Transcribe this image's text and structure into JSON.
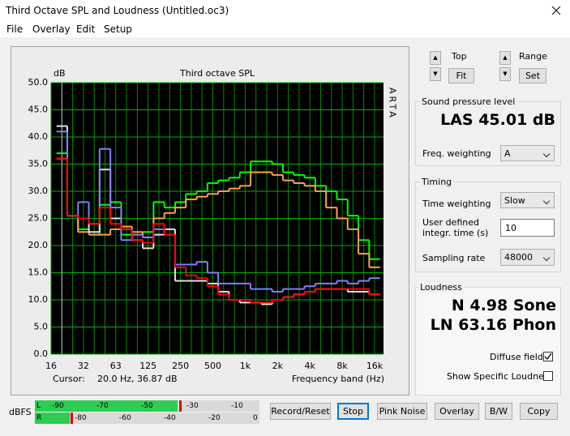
{
  "window": {
    "title": "Third Octave SPL and Loudness (Untitled.oc3)"
  },
  "menu": [
    "File",
    "Overlay",
    "Edit",
    "Setup"
  ],
  "chart_data": {
    "type": "line",
    "step": true,
    "title": "Third octave SPL",
    "y_label": "dB",
    "x_label": "Frequency band (Hz)",
    "side_label": "ARTA",
    "cursor_label": "Cursor:",
    "cursor_value": "20.0 Hz, 36.87 dB",
    "categories": [
      "16",
      null,
      null,
      "32",
      null,
      null,
      "63",
      null,
      null,
      "125",
      null,
      null,
      "250",
      null,
      null,
      "500",
      null,
      null,
      "1k",
      null,
      null,
      "2k",
      null,
      null,
      "4k",
      null,
      null,
      "8k",
      null,
      null,
      "16k"
    ],
    "series": [
      {
        "color": "#00ff00",
        "values": [
          null,
          37,
          25.5,
          23,
          22,
          27.5,
          28,
          22,
          22,
          22.5,
          28,
          27,
          28,
          29.5,
          30,
          31.5,
          32,
          32.5,
          33.5,
          35.5,
          35.5,
          35,
          33.5,
          33,
          32.5,
          31,
          30,
          28.5,
          25.5,
          21,
          17.5
        ]
      },
      {
        "color": "#ff9f50",
        "values": [
          null,
          36,
          25.5,
          22.5,
          22,
          22,
          23,
          23.5,
          22.5,
          21.5,
          25,
          26,
          27,
          28.5,
          29,
          29.5,
          30,
          30.5,
          31,
          33.5,
          33.5,
          33,
          32,
          31.5,
          31,
          30,
          27,
          25,
          23,
          18.5,
          16
        ]
      },
      {
        "color": "#e0e0e0",
        "values": [
          null,
          42,
          25.5,
          25,
          22.5,
          34,
          25,
          23,
          21,
          19.5,
          22,
          23,
          13.5,
          13.5,
          13.5,
          13,
          11.5,
          10,
          9.5,
          9.5,
          9.2,
          10,
          10.5,
          11,
          11.5,
          12,
          12,
          12,
          11.5,
          11.5,
          11
        ]
      },
      {
        "color": "#8080ff",
        "values": [
          null,
          41,
          25.5,
          28,
          24,
          37.8,
          27,
          21,
          22,
          21.5,
          23,
          22,
          16.5,
          16.5,
          17,
          15,
          13,
          13,
          13,
          12,
          12,
          11.5,
          12,
          12,
          12.5,
          13,
          13,
          13.5,
          13,
          13.5,
          14
        ]
      },
      {
        "color": "#ff0000",
        "values": [
          null,
          36,
          25.5,
          25,
          24,
          27,
          24,
          23,
          21,
          20.5,
          24,
          22,
          16,
          14.5,
          14,
          12.5,
          11,
          10,
          10,
          9.5,
          9.5,
          10,
          10.5,
          11,
          11.5,
          12,
          12,
          12,
          12,
          12,
          11
        ]
      }
    ],
    "ylim": [
      0,
      50
    ],
    "yticks": [
      {
        "value": 0,
        "label": "0.0"
      },
      {
        "value": 5,
        "label": "5.0"
      },
      {
        "value": 10,
        "label": "10.0"
      },
      {
        "value": 15,
        "label": "15.0"
      },
      {
        "value": 20,
        "label": "20.0"
      },
      {
        "value": 25,
        "label": "25.0"
      },
      {
        "value": 30,
        "label": "30.0"
      },
      {
        "value": 35,
        "label": "35.0"
      },
      {
        "value": 40,
        "label": "40.0"
      },
      {
        "value": 45,
        "label": "45.0"
      },
      {
        "value": 50,
        "label": "50.0"
      }
    ],
    "grid": true
  },
  "controls": {
    "top_label": "Top",
    "fit": "Fit",
    "range_label": "Range",
    "set": "Set"
  },
  "spl": {
    "group": "Sound pressure level",
    "reading": "LAS 45.01 dB",
    "weighting_label": "Freq. weighting",
    "weighting": "A"
  },
  "timing": {
    "group": "Timing",
    "time_weighting_label": "Time weighting",
    "time_weighting": "Slow",
    "integr_label": "User defined integr. time (s)",
    "integr": "10",
    "sampling_label": "Sampling rate",
    "sampling": "48000"
  },
  "loudness": {
    "group": "Loudness",
    "n": "N 4.98 Sone",
    "ln": "LN 63.16 Phon",
    "diffuse": "Diffuse field",
    "specific": "Show Specific Loudness"
  },
  "meter": {
    "unit": "dBFS",
    "left": "L",
    "right": "R",
    "left_scale": [
      "-90",
      "-70",
      "-50",
      "-30",
      "-10"
    ],
    "right_scale": [
      "-80",
      "-60",
      "-40",
      "-20",
      "0"
    ]
  },
  "buttons": [
    "Record/Reset",
    "Stop",
    "Pink Noise",
    "Overlay",
    "B/W",
    "Copy"
  ]
}
